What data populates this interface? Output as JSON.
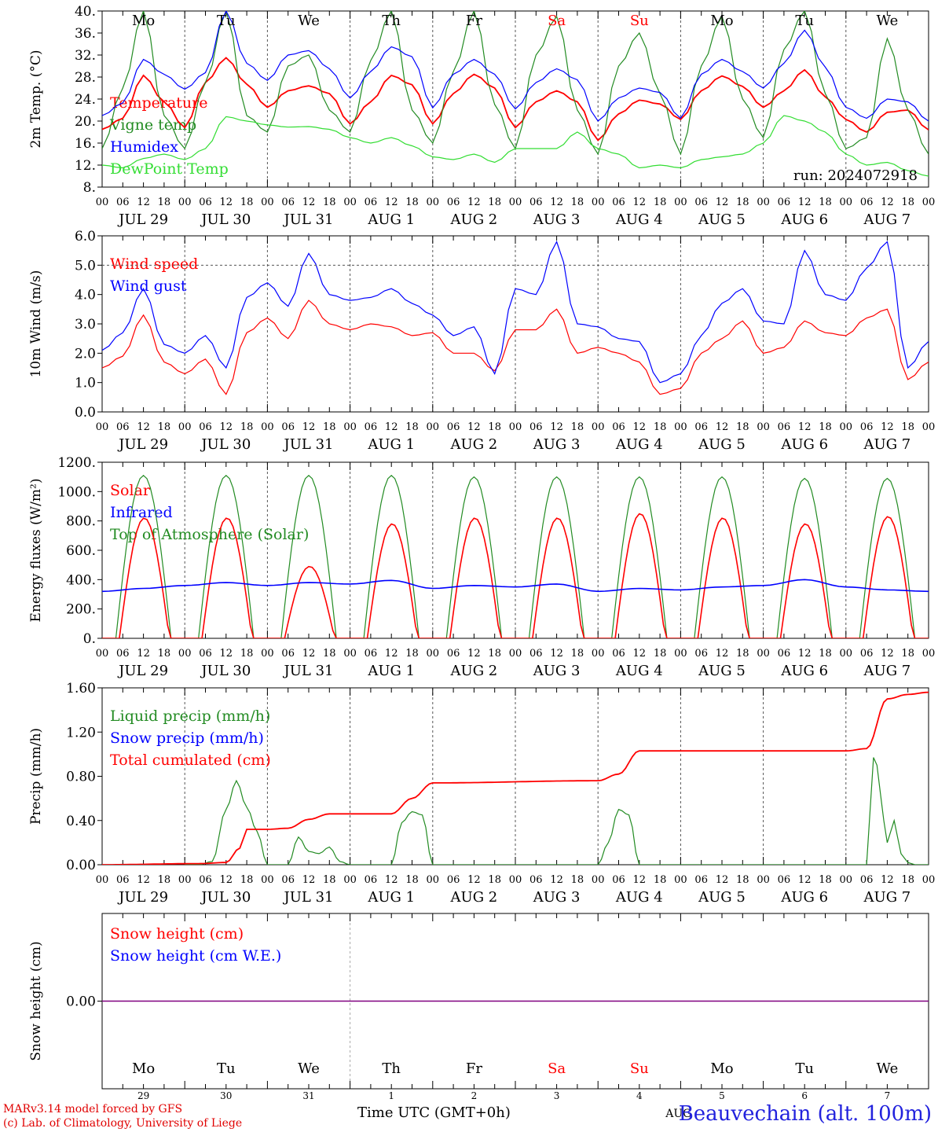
{
  "chart_data": [
    {
      "type": "line",
      "ylabel": "2m Temp. (°C)",
      "ylim": [
        8,
        40
      ],
      "ytick_labels": [
        "8.",
        "12.",
        "16.",
        "20.",
        "24.",
        "28.",
        "32.",
        "36.",
        "40."
      ],
      "legend": "top-left",
      "annotation": "run: 2024072918",
      "grid": "vertical dotted at midnight",
      "series": [
        {
          "name": "Temperature",
          "color": "#ff0000",
          "x": [
            0,
            6,
            12,
            18,
            24,
            30,
            36,
            42,
            48,
            54,
            60,
            66,
            72,
            78,
            84,
            90,
            96,
            102,
            108,
            114,
            120,
            126,
            132,
            138,
            144,
            150,
            156,
            162,
            168,
            174,
            180,
            186,
            192,
            198,
            204,
            210,
            216,
            222,
            228,
            234,
            240
          ],
          "values": [
            18.5,
            20.5,
            28.3,
            23.5,
            18.8,
            27,
            31.5,
            26.7,
            22.5,
            25.5,
            26.4,
            25,
            19.5,
            23.5,
            28.3,
            26.6,
            19.5,
            25,
            28.5,
            26,
            18.8,
            23.5,
            25.5,
            23.5,
            16.5,
            21.3,
            23.8,
            23.1,
            20.3,
            25.5,
            28.2,
            26.3,
            22.5,
            25.5,
            29.3,
            24.4,
            20.3,
            18,
            21.6,
            22,
            18.4
          ]
        },
        {
          "name": "Vigne temp",
          "color": "#228b22",
          "x": [
            0,
            6,
            12,
            18,
            24,
            30,
            36,
            42,
            48,
            54,
            60,
            66,
            72,
            78,
            84,
            90,
            96,
            102,
            108,
            114,
            120,
            126,
            132,
            138,
            144,
            150,
            156,
            162,
            168,
            174,
            180,
            186,
            192,
            198,
            204,
            210,
            216,
            222,
            228,
            234,
            240
          ],
          "values": [
            15,
            26,
            40,
            21,
            15,
            27,
            40,
            21,
            18,
            30,
            32,
            22,
            18,
            31,
            40,
            22,
            16,
            29,
            40,
            23,
            15,
            32,
            39,
            22,
            14,
            30,
            36,
            25,
            14,
            30,
            39,
            24,
            17,
            33,
            40,
            25,
            15,
            17,
            35,
            22,
            14
          ]
        },
        {
          "name": "Humidex",
          "color": "#0000ff",
          "x": [
            0,
            6,
            12,
            18,
            24,
            30,
            36,
            42,
            48,
            54,
            60,
            66,
            72,
            78,
            84,
            90,
            96,
            102,
            108,
            114,
            120,
            126,
            132,
            138,
            144,
            150,
            156,
            162,
            168,
            174,
            180,
            186,
            192,
            198,
            204,
            210,
            216,
            222,
            228,
            234,
            240
          ],
          "values": [
            21,
            23.3,
            31.2,
            28.5,
            25.8,
            28.8,
            40,
            30.5,
            27.4,
            32,
            32.8,
            29.5,
            24.2,
            29,
            33.5,
            31.7,
            22.4,
            28.5,
            31.2,
            28.5,
            22.2,
            27,
            29.5,
            27.5,
            20,
            24.2,
            26,
            25.2,
            20.5,
            28.5,
            31.2,
            29,
            26,
            30.5,
            36.5,
            29.8,
            22.5,
            20.5,
            24,
            23.5,
            20
          ]
        },
        {
          "name": "DewPoint Temp",
          "color": "#33dd33",
          "x": [
            0,
            6,
            12,
            18,
            24,
            30,
            36,
            42,
            48,
            54,
            60,
            66,
            72,
            78,
            84,
            90,
            96,
            102,
            108,
            114,
            120,
            126,
            132,
            138,
            144,
            150,
            156,
            162,
            168,
            174,
            180,
            186,
            192,
            198,
            204,
            210,
            216,
            222,
            228,
            234,
            240
          ],
          "values": [
            12,
            11.5,
            13.2,
            14,
            13,
            15,
            20.8,
            20,
            19.3,
            18.9,
            19,
            18.5,
            17,
            16,
            17,
            15.5,
            13.5,
            13,
            14,
            12.5,
            15,
            15,
            15,
            18,
            15,
            14,
            11.5,
            12,
            11.5,
            13,
            13.5,
            14,
            16,
            21,
            20,
            18,
            14,
            12,
            12.5,
            11,
            10
          ]
        }
      ],
      "day_labels": [
        "Mo",
        "Tu",
        "We",
        "Th",
        "Fr",
        "Sa",
        "Su",
        "Mo",
        "Tu",
        "We"
      ]
    },
    {
      "type": "line",
      "ylabel": "10m Wind (m/s)",
      "ylim": [
        0,
        6
      ],
      "ytick_labels": [
        "0.0",
        "1.0",
        "2.0",
        "3.0",
        "4.0",
        "5.0",
        "6.0"
      ],
      "legend": "top-left",
      "reference_line": 5,
      "series": [
        {
          "name": "Wind speed",
          "color": "#ff0000",
          "x": [
            0,
            6,
            12,
            18,
            24,
            30,
            36,
            42,
            48,
            54,
            60,
            66,
            72,
            78,
            84,
            90,
            96,
            102,
            108,
            114,
            120,
            126,
            132,
            138,
            144,
            150,
            156,
            162,
            168,
            174,
            180,
            186,
            192,
            198,
            204,
            210,
            216,
            222,
            228,
            234,
            240
          ],
          "values": [
            1.5,
            1.9,
            3.3,
            1.7,
            1.3,
            1.8,
            0.6,
            2.7,
            3.2,
            2.5,
            3.8,
            3,
            2.8,
            3,
            2.9,
            2.6,
            2.7,
            2,
            2,
            1.4,
            2.8,
            2.8,
            3.5,
            2,
            2.2,
            2,
            1.7,
            0.6,
            0.8,
            2,
            2.5,
            3.1,
            2,
            2.2,
            3.1,
            2.7,
            2.6,
            3.2,
            3.5,
            1.1,
            1.7
          ]
        },
        {
          "name": "Wind gust",
          "color": "#0000ff",
          "x": [
            0,
            6,
            12,
            18,
            24,
            30,
            36,
            42,
            48,
            54,
            60,
            66,
            72,
            78,
            84,
            90,
            96,
            102,
            108,
            114,
            120,
            126,
            132,
            138,
            144,
            150,
            156,
            162,
            168,
            174,
            180,
            186,
            192,
            198,
            204,
            210,
            216,
            222,
            228,
            234,
            240
          ],
          "values": [
            2.1,
            2.7,
            4.2,
            2.3,
            2,
            2.6,
            1.5,
            3.9,
            4.4,
            3.6,
            5.4,
            4,
            3.8,
            3.9,
            4.2,
            3.7,
            3.3,
            2.6,
            2.9,
            1.3,
            4.2,
            4,
            5.8,
            3,
            2.9,
            2.5,
            2.4,
            1,
            1.3,
            2.6,
            3.7,
            4.2,
            3.1,
            3,
            5.5,
            4,
            3.8,
            4.9,
            5.8,
            1.5,
            2.4
          ]
        }
      ]
    },
    {
      "type": "line",
      "ylabel": "Energy fluxes (W/m²)",
      "ylim": [
        0,
        1200
      ],
      "ytick_labels": [
        "0.",
        "200.",
        "400.",
        "600.",
        "800.",
        "1000.",
        "1200."
      ],
      "legend": "top-left",
      "series": [
        {
          "name": "Solar",
          "color": "#ff0000",
          "daily_peak": [
            820,
            820,
            490,
            780,
            820,
            820,
            850,
            820,
            780,
            830
          ]
        },
        {
          "name": "Infrared",
          "color": "#0000ff",
          "x": [
            0,
            12,
            24,
            36,
            48,
            60,
            72,
            84,
            96,
            108,
            120,
            132,
            144,
            156,
            168,
            180,
            192,
            204,
            216,
            228,
            240
          ],
          "values": [
            320,
            340,
            360,
            380,
            360,
            380,
            370,
            395,
            340,
            360,
            350,
            370,
            320,
            340,
            330,
            350,
            360,
            400,
            350,
            330,
            320
          ]
        },
        {
          "name": "Top of Atmosphere (Solar)",
          "color": "#228b22",
          "daily_peak": [
            1110,
            1110,
            1110,
            1110,
            1100,
            1100,
            1100,
            1100,
            1090,
            1090
          ]
        }
      ]
    },
    {
      "type": "line",
      "ylabel": "Precip (mm/h)",
      "ylim": [
        0,
        1.6
      ],
      "ytick_labels": [
        "0.00",
        "0.40",
        "0.80",
        "1.20",
        "1.60"
      ],
      "legend": "top-left",
      "series": [
        {
          "name": "Liquid precip (mm/h)",
          "color": "#228b22",
          "x": [
            24,
            28,
            32,
            36,
            39,
            42,
            45,
            48,
            54,
            57,
            60,
            63,
            66,
            69,
            72,
            84,
            87,
            90,
            93,
            96,
            144,
            147,
            150,
            153,
            156,
            222,
            224,
            225,
            227,
            228,
            230,
            232,
            234,
            236,
            240
          ],
          "values": [
            0,
            0,
            0.03,
            0.5,
            0.76,
            0.52,
            0.3,
            0,
            0,
            0.25,
            0.12,
            0.1,
            0.16,
            0.03,
            0,
            0,
            0.38,
            0.48,
            0.45,
            0,
            0,
            0.2,
            0.5,
            0.45,
            0,
            0,
            0.97,
            0.9,
            0.4,
            0.2,
            0.4,
            0.1,
            0.02,
            0,
            0
          ]
        },
        {
          "name": "Snow precip (mm/h)",
          "color": "#0000ff",
          "values": []
        },
        {
          "name": "Total cumulated (cm)",
          "color": "#ff0000",
          "x": [
            0,
            28,
            36,
            40,
            42,
            48,
            54,
            60,
            66,
            84,
            90,
            96,
            144,
            150,
            156,
            168,
            216,
            222,
            228,
            234,
            240
          ],
          "values": [
            0,
            0.01,
            0.02,
            0.15,
            0.32,
            0.32,
            0.33,
            0.41,
            0.46,
            0.46,
            0.6,
            0.74,
            0.76,
            0.82,
            1.03,
            1.03,
            1.03,
            1.05,
            1.5,
            1.54,
            1.56
          ]
        }
      ]
    },
    {
      "type": "line",
      "ylabel": "Snow height (cm)",
      "ytick_labels": [
        "0.00"
      ],
      "legend": "top-left",
      "series": [
        {
          "name": "Snow height (cm)",
          "color": "#ff0000",
          "values": [
            0,
            0
          ]
        },
        {
          "name": "Snow height (cm W.E.)",
          "color": "#0000ff",
          "values": [
            0,
            0
          ]
        }
      ]
    }
  ],
  "x_axis": {
    "hour_ticks": [
      "00",
      "06",
      "12",
      "18"
    ],
    "final_tick": "00",
    "date_labels": [
      "JUL 29",
      "JUL 30",
      "JUL 31",
      "AUG  1",
      "AUG  2",
      "AUG  3",
      "AUG  4",
      "AUG  5",
      "AUG  6",
      "AUG  7"
    ],
    "day_labels": [
      "Mo",
      "Tu",
      "We",
      "Th",
      "Fr",
      "Sa",
      "Su",
      "Mo",
      "Tu",
      "We"
    ],
    "weekend_days": [
      "Sa",
      "Su"
    ],
    "day_numbers": [
      "29",
      "30",
      "31",
      "1",
      "2",
      "3",
      "4",
      "5",
      "6",
      "7"
    ],
    "month_label": "AUG",
    "xlabel": "Time UTC (GMT+0h)"
  },
  "footer": {
    "credit_1": "MARv3.14 model forced by GFS",
    "credit_2": "(c) Lab. of Climatology, University of Liege",
    "station": "Beauvechain (alt. 100m)"
  },
  "colors": {
    "red": "#ff0000",
    "blue": "#0000ff",
    "green": "#228b22",
    "light_green": "#33dd33",
    "purple": "#800080"
  }
}
